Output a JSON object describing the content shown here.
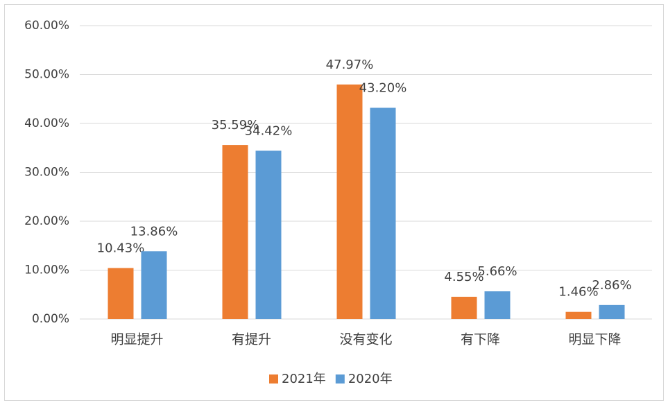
{
  "chart_data": {
    "type": "bar",
    "categories": [
      "明显提升",
      "有提升",
      "没有变化",
      "有下降",
      "明显下降"
    ],
    "series": [
      {
        "name": "2021年",
        "color": "#ed7d31",
        "values": [
          10.43,
          35.59,
          47.97,
          4.55,
          1.46
        ],
        "value_labels": [
          "10.43%",
          "35.59%",
          "47.97%",
          "4.55%",
          "1.46%"
        ]
      },
      {
        "name": "2020年",
        "color": "#5b9bd5",
        "values": [
          13.86,
          34.42,
          43.2,
          5.66,
          2.86
        ],
        "value_labels": [
          "13.86%",
          "34.42%",
          "43.20%",
          "5.66%",
          "2.86%"
        ]
      }
    ],
    "ylim": [
      0,
      60
    ],
    "yticks": [
      {
        "value": 0,
        "label": "0.00%"
      },
      {
        "value": 10,
        "label": "10.00%"
      },
      {
        "value": 20,
        "label": "20.00%"
      },
      {
        "value": 30,
        "label": "30.00%"
      },
      {
        "value": 40,
        "label": "40.00%"
      },
      {
        "value": 50,
        "label": "50.00%"
      },
      {
        "value": 60,
        "label": "60.00%"
      }
    ],
    "grid": true,
    "legend": "bottom"
  }
}
